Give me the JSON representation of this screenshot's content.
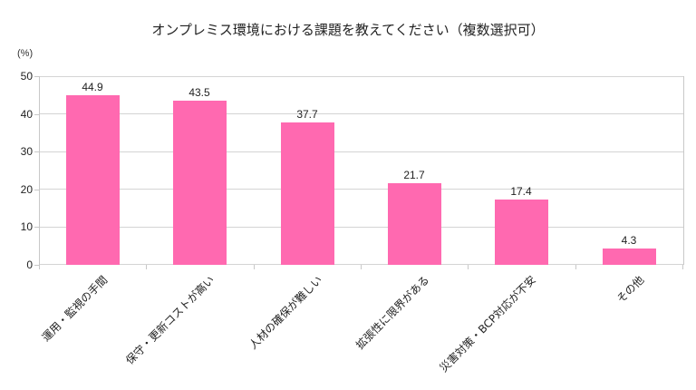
{
  "chart_data": {
    "type": "bar",
    "title": "オンプレミス環境における課題を教えてください（複数選択可）",
    "xlabel": "",
    "ylabel": "(%)",
    "ylim": [
      0,
      50
    ],
    "yticks": [
      "0",
      "10",
      "20",
      "30",
      "40",
      "50"
    ],
    "grid": true,
    "legend": null,
    "bar_color": "#ff69b0",
    "categories": [
      "運用・監視の手間",
      "保守・更新コストが高い",
      "人材の確保が難しい",
      "拡張性に限界がある",
      "災害対策・BCP対応が不安",
      "その他"
    ],
    "values": [
      44.9,
      43.5,
      37.7,
      21.7,
      17.4,
      4.3
    ],
    "value_labels": [
      "44.9",
      "43.5",
      "37.7",
      "21.7",
      "17.4",
      "4.3"
    ]
  }
}
